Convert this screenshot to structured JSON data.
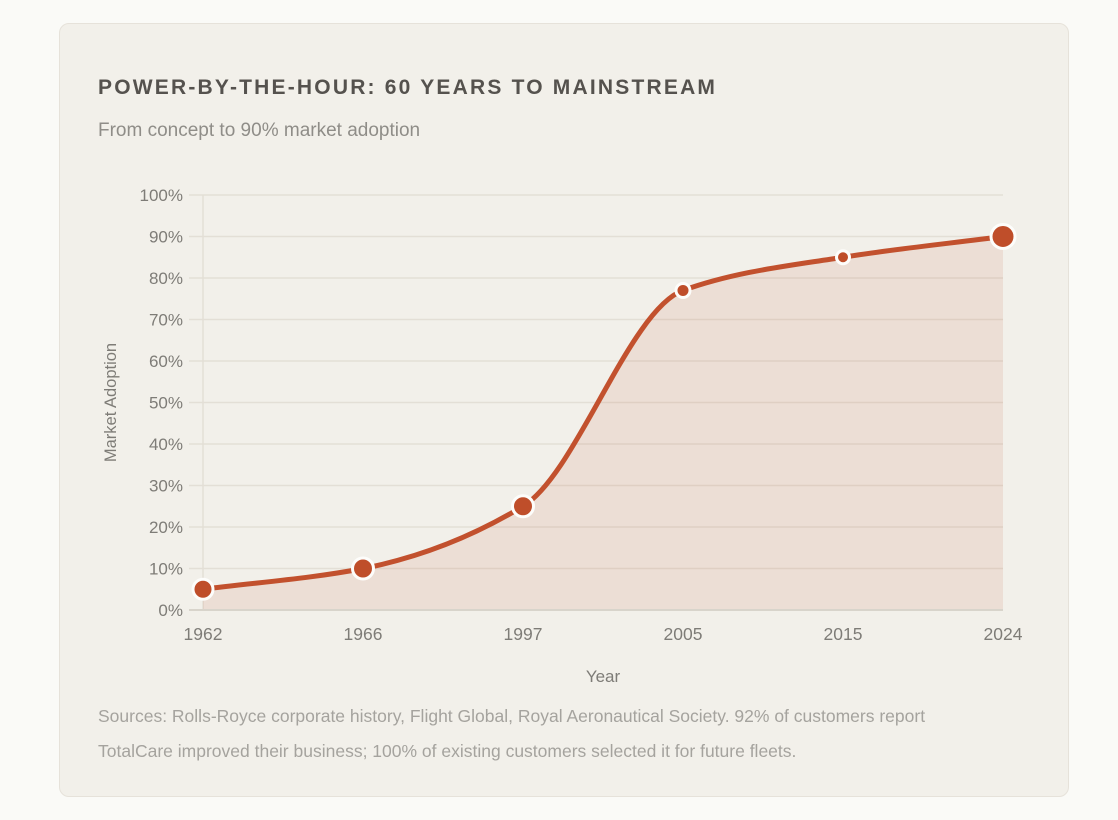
{
  "card": {
    "title": "POWER-BY-THE-HOUR: 60 YEARS TO MAINSTREAM",
    "subtitle": "From concept to 90% market adoption",
    "source_note": "Sources: Rolls-Royce corporate history, Flight Global, Royal Aeronautical Society. 92% of customers report TotalCare improved their business; 100% of existing customers selected it for future fleets."
  },
  "chart_data": {
    "type": "area",
    "title": "POWER-BY-THE-HOUR: 60 YEARS TO MAINSTREAM",
    "subtitle": "From concept to 90% market adoption",
    "categories": [
      "1962",
      "1966",
      "1997",
      "2005",
      "2015",
      "2024"
    ],
    "values": [
      5,
      10,
      25,
      77,
      85,
      90
    ],
    "xlabel": "Year",
    "ylabel": "Market Adoption",
    "ylim": [
      0,
      100
    ],
    "ytick_step": 10,
    "ytick_suffix": "%",
    "grid": "horizontal-only",
    "legend": "none",
    "smooth": true,
    "point_radii": [
      10,
      10.5,
      10.5,
      7,
      6.5,
      12
    ],
    "colors": {
      "line": "#c2512e",
      "point": "#bf4e2a",
      "point_ring": "#fdfdfb",
      "area_fill": "rgba(194,81,46,0.11)",
      "grid": "#e3dfd6",
      "axis": "#d8d4cb",
      "tick_text": "#7e7c77",
      "title_text": "#55524e",
      "subtitle_text": "#8f8d88",
      "source_text": "#a5a39e"
    }
  }
}
